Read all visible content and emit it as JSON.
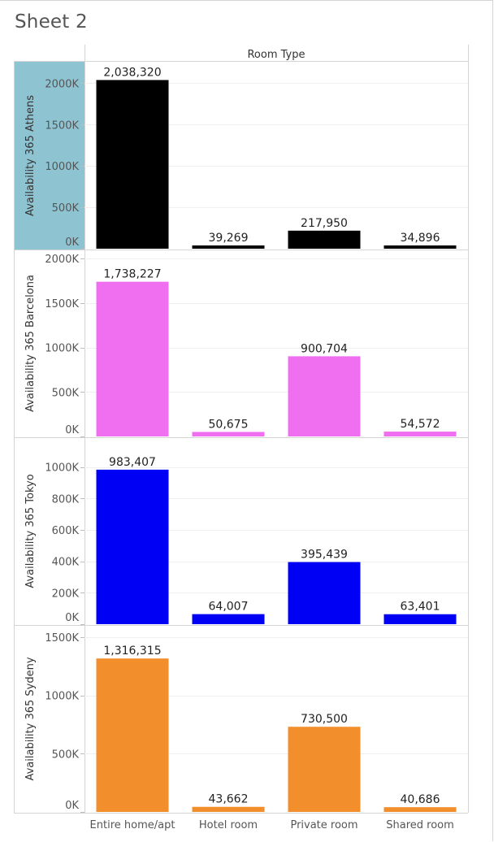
{
  "sheet": {
    "title": "Sheet 2"
  },
  "chart_data": {
    "type": "bar",
    "column_header": "Room Type",
    "categories": [
      "Entire home/apt",
      "Hotel room",
      "Private room",
      "Shared room"
    ],
    "panels": [
      {
        "ylabel": "Availability 365 Athens",
        "color": "#000000",
        "highlighted": true,
        "highlight_color": "#8ec3d2",
        "ylim": [
          0,
          2200000
        ],
        "ticks": [
          0,
          500000,
          1000000,
          1500000,
          2000000
        ],
        "tick_labels": [
          "0K",
          "500K",
          "1000K",
          "1500K",
          "2000K"
        ],
        "values": [
          2038320,
          39269,
          217950,
          34896
        ],
        "value_labels": [
          "2,038,320",
          "39,269",
          "217,950",
          "34,896"
        ]
      },
      {
        "ylabel": "Availability 365 Barcelona",
        "color": "#ef6ff0",
        "highlighted": false,
        "ylim": [
          0,
          2000000
        ],
        "ticks": [
          0,
          500000,
          1000000,
          1500000,
          2000000
        ],
        "tick_labels": [
          "0K",
          "500K",
          "1000K",
          "1500K",
          "2000K"
        ],
        "values": [
          1738227,
          50675,
          900704,
          54572
        ],
        "value_labels": [
          "1,738,227",
          "50,675",
          "900,704",
          "54,572"
        ]
      },
      {
        "ylabel": "Availability 365 Tokyo",
        "color": "#0000f5",
        "highlighted": false,
        "ylim": [
          0,
          1050000
        ],
        "ticks": [
          0,
          200000,
          400000,
          600000,
          800000,
          1000000
        ],
        "tick_labels": [
          "0K",
          "200K",
          "400K",
          "600K",
          "800K",
          "1000K"
        ],
        "values": [
          983407,
          64007,
          395439,
          63401
        ],
        "value_labels": [
          "983,407",
          "64,007",
          "395,439",
          "63,401"
        ]
      },
      {
        "ylabel": "Availability 365 Sydeny",
        "color": "#f28e2b",
        "highlighted": false,
        "ylim": [
          0,
          1520000
        ],
        "ticks": [
          0,
          500000,
          1000000,
          1500000
        ],
        "tick_labels": [
          "0K",
          "500K",
          "1000K",
          "1500K"
        ],
        "values": [
          1316315,
          43662,
          730500,
          40686
        ],
        "value_labels": [
          "1,316,315",
          "43,662",
          "730,500",
          "40,686"
        ]
      }
    ]
  }
}
